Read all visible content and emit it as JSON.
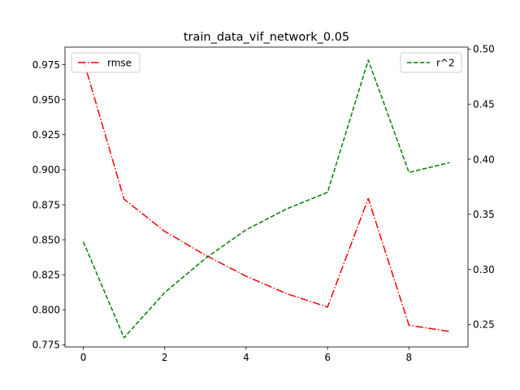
{
  "chart_data": {
    "type": "line",
    "title": "train_data_vif_network_0.05",
    "x": [
      0,
      1,
      2,
      3,
      4,
      5,
      6,
      7,
      8,
      9
    ],
    "xlim": [
      -0.45,
      9.45
    ],
    "xticks": [
      0,
      2,
      4,
      6,
      8
    ],
    "xtick_labels": [
      "0",
      "2",
      "4",
      "6",
      "8"
    ],
    "y_left": {
      "lim": [
        0.7735,
        0.9875
      ],
      "ticks": [
        0.775,
        0.8,
        0.825,
        0.85,
        0.875,
        0.9,
        0.925,
        0.95,
        0.975
      ],
      "tick_labels": [
        "0.775",
        "0.800",
        "0.825",
        "0.850",
        "0.875",
        "0.900",
        "0.925",
        "0.950",
        "0.975"
      ]
    },
    "y_right": {
      "lim": [
        0.2296,
        0.5018
      ],
      "ticks": [
        0.25,
        0.3,
        0.35,
        0.4,
        0.45,
        0.5
      ],
      "tick_labels": [
        "0.25",
        "0.30",
        "0.35",
        "0.40",
        "0.45",
        "0.50"
      ]
    },
    "series": [
      {
        "name": "rmse",
        "axis": "left",
        "color": "#ff0000",
        "style": "dashdot",
        "values": [
          0.9785,
          0.879,
          0.856,
          0.839,
          0.824,
          0.8115,
          0.802,
          0.8795,
          0.789,
          0.7845
        ]
      },
      {
        "name": "r^2",
        "axis": "right",
        "color": "#008000",
        "style": "dashed",
        "values": [
          0.325,
          0.238,
          0.279,
          0.31,
          0.336,
          0.355,
          0.37,
          0.49,
          0.388,
          0.397
        ]
      }
    ],
    "legends": [
      {
        "placement": "upper left",
        "series": "rmse"
      },
      {
        "placement": "upper right",
        "series": "r^2"
      }
    ],
    "grid": false
  }
}
